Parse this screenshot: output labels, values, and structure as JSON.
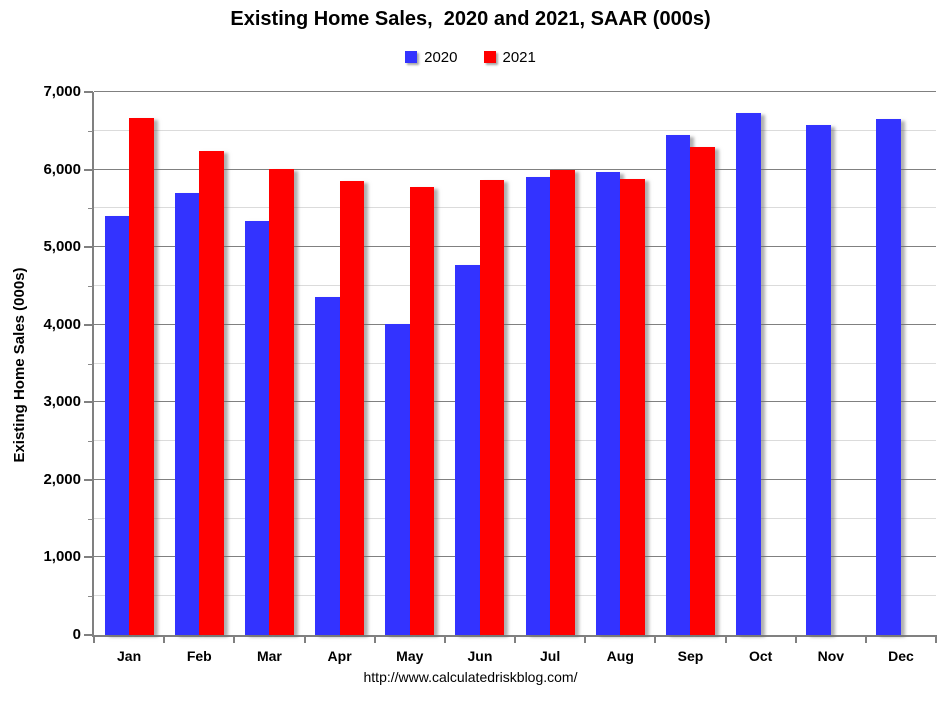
{
  "footer_url": "http://www.calculatedriskblog.com/",
  "chart_data": {
    "type": "bar",
    "title": "Existing Home Sales,  2020 and 2021, SAAR (000s)",
    "ylabel": "Existing Home Sales (000s)",
    "xlabel": "",
    "categories": [
      "Jan",
      "Feb",
      "Mar",
      "Apr",
      "May",
      "Jun",
      "Jul",
      "Aug",
      "Sep",
      "Oct",
      "Nov",
      "Dec"
    ],
    "series": [
      {
        "name": "2020",
        "color": "#3333FF",
        "values": [
          5400,
          5700,
          5340,
          4360,
          4010,
          4770,
          5900,
          5970,
          6440,
          6730,
          6580,
          6650
        ]
      },
      {
        "name": "2021",
        "color": "#FF0000",
        "values": [
          6660,
          6240,
          6010,
          5850,
          5780,
          5870,
          5990,
          5880,
          6290,
          null,
          null,
          null
        ]
      }
    ],
    "ylim": [
      0,
      7000
    ],
    "y_major_step": 1000,
    "y_minor_step": 500,
    "grid": true,
    "legend_position": "top-center",
    "colors": {
      "major_grid": "#808080",
      "minor_grid": "#DBDBDB",
      "axis": "#808080",
      "text": "#000000",
      "background": "#FFFFFF"
    }
  }
}
